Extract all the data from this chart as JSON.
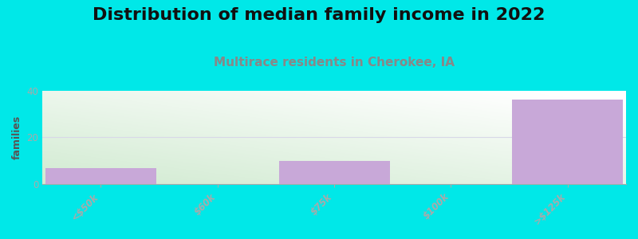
{
  "title": "Distribution of median family income in 2022",
  "subtitle": "Multirace residents in Cherokee, IA",
  "categories": [
    "<$50k",
    "$60k",
    "$75k",
    "$100k",
    ">$125k"
  ],
  "values": [
    7,
    0,
    10,
    0,
    36
  ],
  "bar_color": "#c8a8d8",
  "background_color": "#00e8e8",
  "ylabel": "families",
  "ylim": [
    0,
    40
  ],
  "yticks": [
    0,
    20,
    40
  ],
  "title_fontsize": 16,
  "subtitle_fontsize": 11,
  "subtitle_color": "#888888",
  "title_color": "#111111",
  "bar_width": 0.95,
  "grid_color": "#d8d8e8",
  "axis_color": "#aaaaaa",
  "tick_label_color": "#777777",
  "ylabel_color": "#555555"
}
